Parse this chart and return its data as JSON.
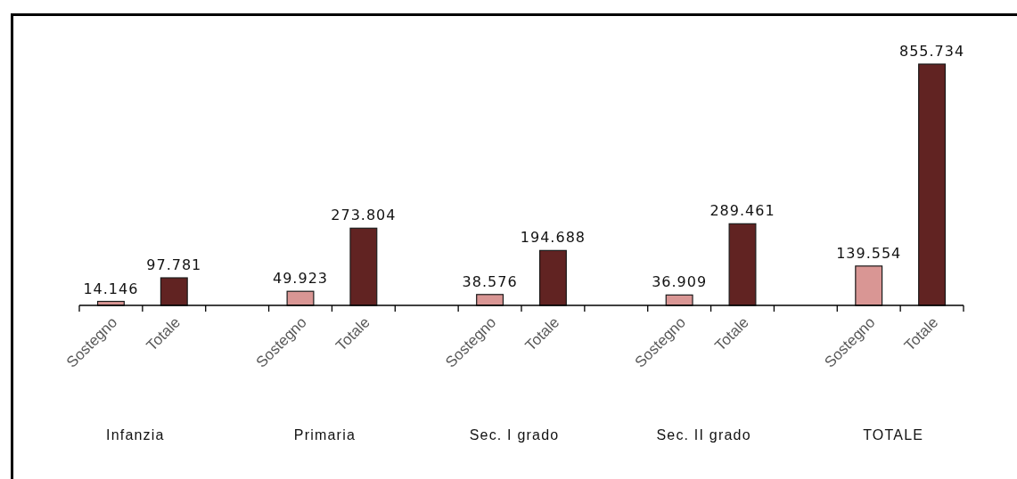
{
  "chart_data": {
    "type": "bar",
    "categories": [
      "Infanzia",
      "Primaria",
      "Sec. I grado",
      "Sec. II grado",
      "TOTALE"
    ],
    "series": [
      {
        "name": "Sostegno",
        "color": "#d99694",
        "values": [
          14146,
          49923,
          38576,
          36909,
          139554
        ],
        "value_labels": [
          "14.146",
          "49.923",
          "38.576",
          "36.909",
          "139.554"
        ]
      },
      {
        "name": "Totale",
        "color": "#612322",
        "values": [
          97781,
          273804,
          194688,
          289461,
          855734
        ],
        "value_labels": [
          "97.781",
          "273.804",
          "194.688",
          "289.461",
          "855.734"
        ]
      }
    ]
  }
}
